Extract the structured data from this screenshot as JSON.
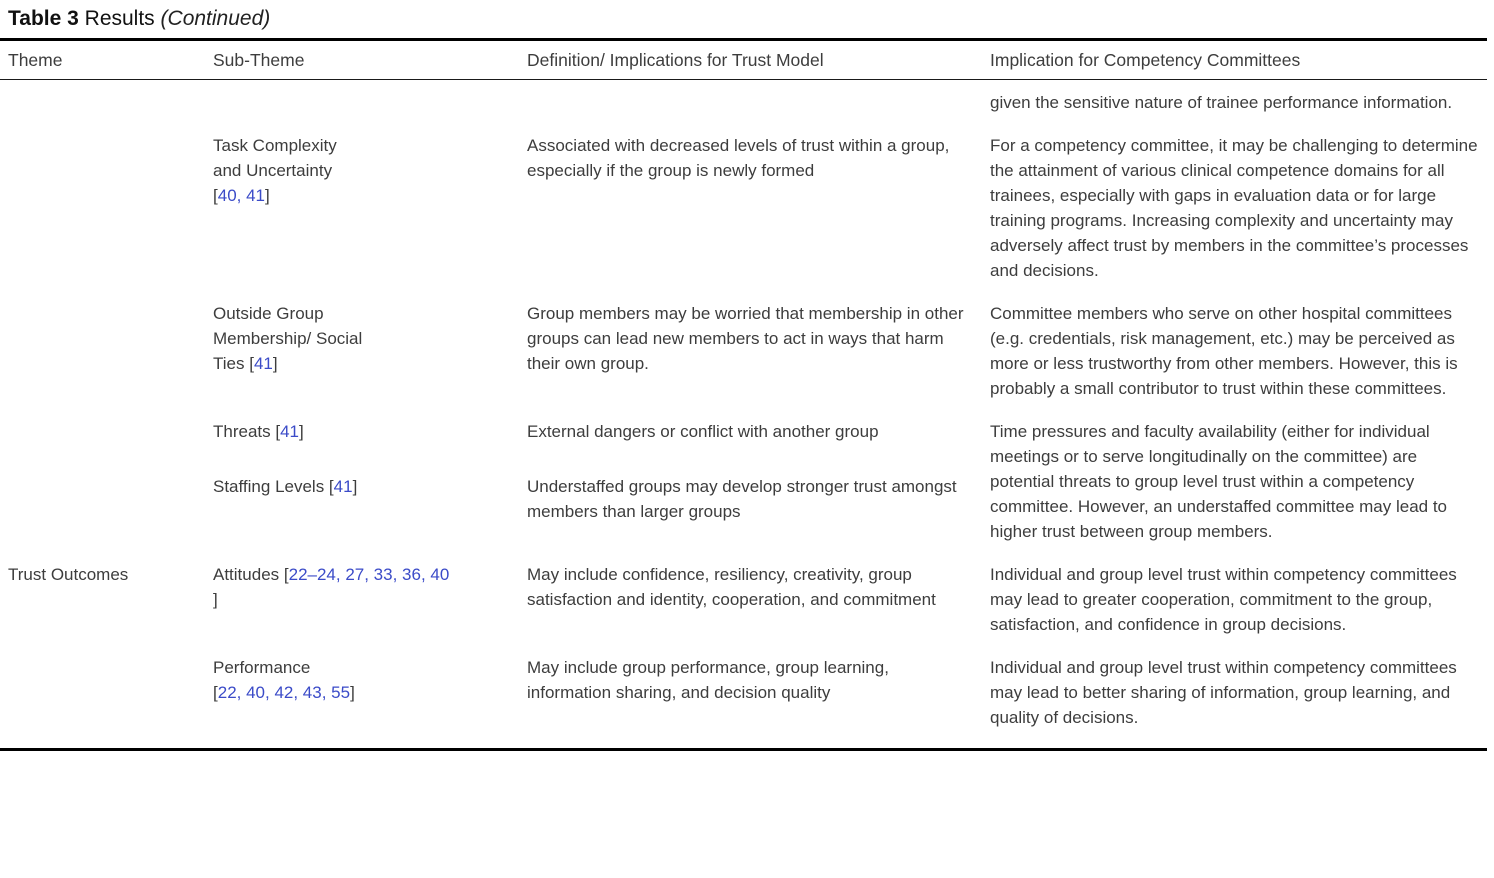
{
  "title": {
    "table_label": "Table 3",
    "table_title": "Results",
    "continued": "(Continued)"
  },
  "columns": {
    "theme": "Theme",
    "subtheme": "Sub-Theme",
    "definition": "Definition/ Implications for Trust Model",
    "implication": "Implication for Competency Committees"
  },
  "colors": {
    "citation_link_blue": "#3b4bc8",
    "body_text": "#3d3d3d",
    "rule_black": "#000000"
  },
  "rows": [
    {
      "theme": "",
      "subtheme_lines": [],
      "definition": "",
      "implication": "given the sensitive nature of trainee performance information."
    },
    {
      "theme": "",
      "subtheme_lines": [
        [
          {
            "t": "Task Complexity"
          }
        ],
        [
          {
            "t": "and Uncertainty"
          }
        ],
        [
          {
            "t": "["
          },
          {
            "t": "40, 41",
            "link": true
          },
          {
            "t": "]"
          }
        ]
      ],
      "definition": "Associated with decreased levels of trust within a group, especially if the group is newly formed",
      "implication": "For a competency committee, it may be challenging to determine the attainment of various clinical competence domains for all trainees, especially with gaps in evaluation data or for large training programs. Increasing complexity and uncertainty may adversely affect trust by members in the committee’s processes and decisions."
    },
    {
      "theme": "",
      "subtheme_lines": [
        [
          {
            "t": "Outside Group"
          }
        ],
        [
          {
            "t": "Membership/ Social"
          }
        ],
        [
          {
            "t": "Ties ["
          },
          {
            "t": "41",
            "link": true
          },
          {
            "t": "]"
          }
        ]
      ],
      "definition": "Group members may be worried that membership in other groups can lead new members to act in ways that harm their own group.",
      "implication": "Committee members who serve on other hospital committees (e.g. credentials, risk management, etc.) may be perceived as more or less trustworthy from other members. However, this is probably a small contributor to trust within these committees."
    },
    {
      "theme": "",
      "subtheme_lines": [
        [
          {
            "t": "Threats ["
          },
          {
            "t": "41",
            "link": true
          },
          {
            "t": "]"
          }
        ]
      ],
      "definition": "External dangers or conflict with another group",
      "implication": "Time pressures and faculty availability (either for individual meetings or to serve longitudinally on the committee) are potential threats to group level trust within a competency committee. However, an understaffed committee may lead to higher trust between group members."
    },
    {
      "theme": "",
      "subtheme_lines": [
        [
          {
            "t": "Staffing Levels ["
          },
          {
            "t": "41",
            "link": true
          },
          {
            "t": "]"
          }
        ]
      ],
      "definition": "Understaffed groups may develop stronger trust amongst members than larger groups",
      "implication": ""
    },
    {
      "theme": "Trust Outcomes",
      "subtheme_lines": [
        [
          {
            "t": "Attitudes ["
          },
          {
            "t": "22–24, 27, 33, 36, 40",
            "link": true
          }
        ],
        [
          {
            "t": "]"
          }
        ]
      ],
      "definition": "May include confidence, resiliency, creativity, group satisfaction and identity, cooperation, and commitment",
      "implication": "Individual and group level trust within competency committees may lead to greater cooperation, commitment to the group, satisfaction, and confidence in group decisions."
    },
    {
      "theme": "",
      "subtheme_lines": [
        [
          {
            "t": "Performance"
          }
        ],
        [
          {
            "t": "["
          },
          {
            "t": "22, 40, 42, 43, 55",
            "link": true
          },
          {
            "t": "]"
          }
        ]
      ],
      "definition": "May include group performance, group learning, information sharing, and decision quality",
      "implication": "Individual and group level trust within competency committees may lead to better sharing of information, group learning, and quality of decisions."
    }
  ]
}
